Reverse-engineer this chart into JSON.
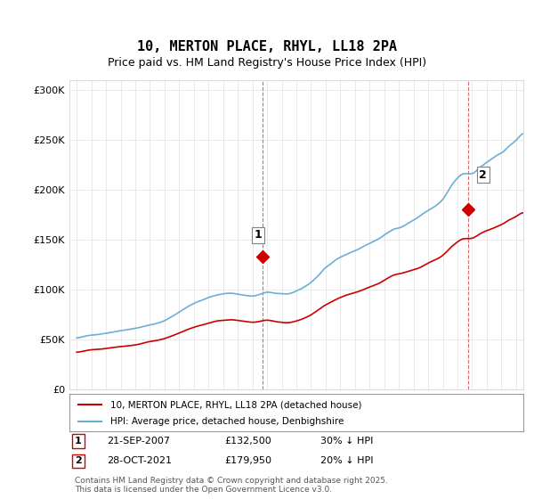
{
  "title1": "10, MERTON PLACE, RHYL, LL18 2PA",
  "title2": "Price paid vs. HM Land Registry's House Price Index (HPI)",
  "legend_line1": "10, MERTON PLACE, RHYL, LL18 2PA (detached house)",
  "legend_line2": "HPI: Average price, detached house, Denbighshire",
  "sale1_date": "21-SEP-2007",
  "sale1_price": 132500,
  "sale1_label": "30% ↓ HPI",
  "sale2_date": "28-OCT-2021",
  "sale2_price": 179950,
  "sale2_label": "20% ↓ HPI",
  "footer": "Contains HM Land Registry data © Crown copyright and database right 2025.\nThis data is licensed under the Open Government Licence v3.0.",
  "hpi_color": "#6baed6",
  "price_color": "#cc0000",
  "vline_color": "#cc0000",
  "background_color": "#ffffff",
  "ylim": [
    0,
    310000
  ],
  "yticks": [
    0,
    50000,
    100000,
    150000,
    200000,
    250000,
    300000
  ],
  "xlim_start": 1994.5,
  "xlim_end": 2025.5
}
